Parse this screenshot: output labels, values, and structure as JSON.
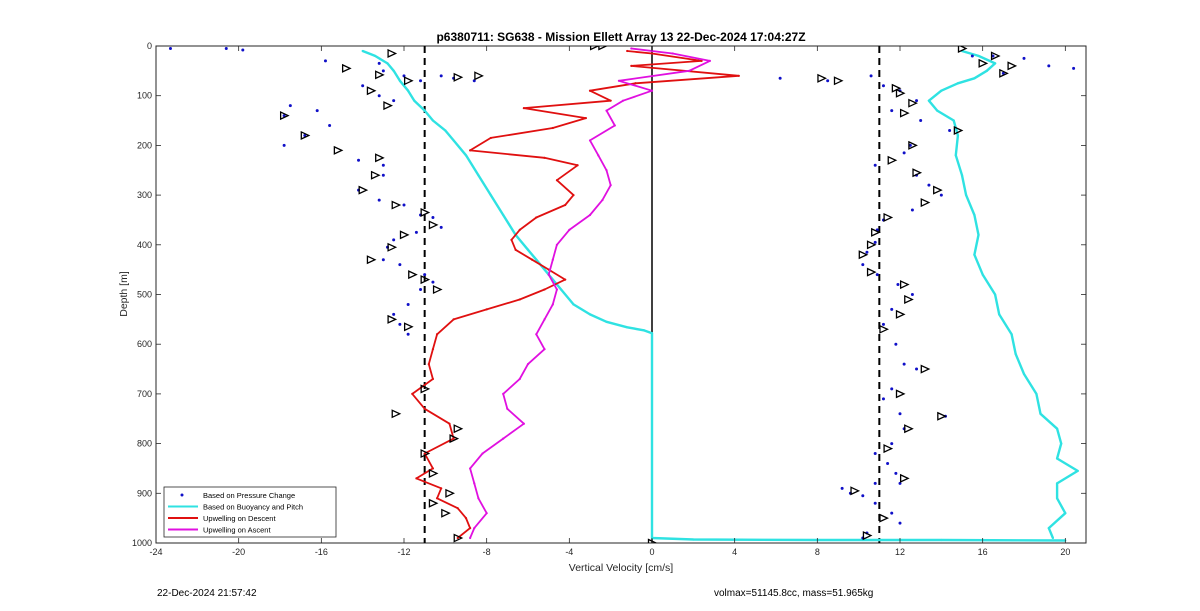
{
  "chart_data": {
    "type": "line",
    "title": "p6380711: SG638 - Mission Ellett Array 13 22-Dec-2024 17:04:27Z",
    "xlabel": "Vertical Velocity [cm/s]",
    "ylabel": "Depth [m]",
    "xlim": [
      -24,
      21
    ],
    "ylim": [
      0,
      1000
    ],
    "y_reversed": true,
    "xticks": [
      -24,
      -20,
      -16,
      -12,
      -8,
      -4,
      0,
      4,
      8,
      12,
      16,
      20
    ],
    "yticks": [
      0,
      100,
      200,
      300,
      400,
      500,
      600,
      700,
      800,
      900,
      1000
    ],
    "grid": false,
    "legend_position": "bottom-left",
    "reference_lines": {
      "dashed_x": [
        -11,
        11
      ],
      "solid_x": 0
    },
    "series": [
      {
        "name": "Based on Pressure Change",
        "style": "dots",
        "color": "#1010c8",
        "points": [
          [
            -23.3,
            5
          ],
          [
            -20.6,
            5
          ],
          [
            -19.8,
            8
          ],
          [
            -15.8,
            30
          ],
          [
            -13.2,
            35
          ],
          [
            -13.0,
            50
          ],
          [
            -12.0,
            60
          ],
          [
            -11.2,
            70
          ],
          [
            -10.2,
            60
          ],
          [
            -9.6,
            65
          ],
          [
            -8.6,
            70
          ],
          [
            -14.0,
            80
          ],
          [
            -13.2,
            100
          ],
          [
            -12.5,
            110
          ],
          [
            -17.5,
            120
          ],
          [
            -17.8,
            140
          ],
          [
            -16.2,
            130
          ],
          [
            -15.6,
            160
          ],
          [
            -16.8,
            180
          ],
          [
            -17.8,
            200
          ],
          [
            -14.2,
            230
          ],
          [
            -13.0,
            240
          ],
          [
            -13.0,
            260
          ],
          [
            -14.2,
            290
          ],
          [
            -13.2,
            310
          ],
          [
            -12.0,
            320
          ],
          [
            -11.2,
            340
          ],
          [
            -10.6,
            345
          ],
          [
            -10.2,
            365
          ],
          [
            -11.4,
            375
          ],
          [
            -12.5,
            390
          ],
          [
            -12.8,
            405
          ],
          [
            -13.0,
            430
          ],
          [
            -12.2,
            440
          ],
          [
            -11.0,
            460
          ],
          [
            -10.6,
            475
          ],
          [
            -11.2,
            490
          ],
          [
            -11.8,
            520
          ],
          [
            -12.5,
            540
          ],
          [
            -12.2,
            560
          ],
          [
            -11.8,
            580
          ],
          [
            8.5,
            70
          ],
          [
            6.2,
            65
          ],
          [
            10.6,
            60
          ],
          [
            11.2,
            80
          ],
          [
            12.0,
            90
          ],
          [
            12.8,
            110
          ],
          [
            11.6,
            130
          ],
          [
            13.0,
            150
          ],
          [
            14.4,
            170
          ],
          [
            12.5,
            200
          ],
          [
            12.2,
            215
          ],
          [
            10.8,
            240
          ],
          [
            12.8,
            260
          ],
          [
            13.4,
            280
          ],
          [
            14.0,
            300
          ],
          [
            12.6,
            330
          ],
          [
            11.2,
            350
          ],
          [
            10.9,
            370
          ],
          [
            10.8,
            395
          ],
          [
            10.4,
            415
          ],
          [
            10.2,
            440
          ],
          [
            10.9,
            460
          ],
          [
            11.9,
            480
          ],
          [
            12.6,
            500
          ],
          [
            11.6,
            530
          ],
          [
            11.2,
            560
          ],
          [
            11.8,
            600
          ],
          [
            12.2,
            640
          ],
          [
            12.8,
            650
          ],
          [
            11.6,
            690
          ],
          [
            11.2,
            710
          ],
          [
            12.0,
            740
          ],
          [
            14.2,
            745
          ],
          [
            12.2,
            770
          ],
          [
            11.6,
            800
          ],
          [
            10.8,
            820
          ],
          [
            11.4,
            840
          ],
          [
            11.8,
            860
          ],
          [
            12.0,
            880
          ],
          [
            10.8,
            880
          ],
          [
            9.2,
            890
          ],
          [
            9.6,
            900
          ],
          [
            10.2,
            905
          ],
          [
            10.8,
            920
          ],
          [
            11.6,
            940
          ],
          [
            12.0,
            960
          ],
          [
            10.4,
            980
          ],
          [
            10.2,
            990
          ],
          [
            15.5,
            20
          ],
          [
            16.5,
            20
          ],
          [
            18.0,
            25
          ],
          [
            19.2,
            40
          ],
          [
            20.4,
            45
          ],
          [
            17.0,
            55
          ]
        ]
      },
      {
        "name": "Based on Buoyancy and Pitch",
        "style": "line",
        "color": "#2fe2e2",
        "points": [
          [
            -14.0,
            10
          ],
          [
            -13.4,
            20
          ],
          [
            -12.8,
            35
          ],
          [
            -12.5,
            50
          ],
          [
            -12.2,
            70
          ],
          [
            -11.8,
            90
          ],
          [
            -11.5,
            110
          ],
          [
            -11.0,
            130
          ],
          [
            -10.6,
            150
          ],
          [
            -10.0,
            170
          ],
          [
            -9.6,
            190
          ],
          [
            -9.0,
            220
          ],
          [
            -8.4,
            260
          ],
          [
            -7.8,
            300
          ],
          [
            -7.2,
            340
          ],
          [
            -6.6,
            380
          ],
          [
            -6.0,
            410
          ],
          [
            -5.6,
            430
          ],
          [
            -5.0,
            460
          ],
          [
            -4.4,
            490
          ],
          [
            -3.8,
            520
          ],
          [
            -3.0,
            540
          ],
          [
            -2.2,
            555
          ],
          [
            -1.2,
            566
          ],
          [
            -0.4,
            572
          ],
          [
            0,
            578
          ],
          [
            0,
            990
          ],
          [
            2,
            993
          ],
          [
            8,
            994
          ],
          [
            14,
            994
          ],
          [
            20,
            995
          ],
          [
            15,
            10
          ],
          [
            15.8,
            20
          ],
          [
            16.6,
            35
          ],
          [
            16.2,
            50
          ],
          [
            15.6,
            65
          ],
          [
            14.8,
            75
          ],
          [
            14.0,
            90
          ],
          [
            13.4,
            110
          ],
          [
            13.8,
            130
          ],
          [
            14.6,
            150
          ],
          [
            14.8,
            180
          ],
          [
            14.7,
            220
          ],
          [
            15.0,
            260
          ],
          [
            15.2,
            300
          ],
          [
            15.6,
            340
          ],
          [
            15.8,
            380
          ],
          [
            15.6,
            420
          ],
          [
            16.0,
            460
          ],
          [
            16.6,
            500
          ],
          [
            16.8,
            540
          ],
          [
            17.4,
            580
          ],
          [
            17.6,
            620
          ],
          [
            18.0,
            660
          ],
          [
            18.6,
            700
          ],
          [
            18.8,
            740
          ],
          [
            19.6,
            770
          ],
          [
            19.8,
            800
          ],
          [
            19.6,
            830
          ],
          [
            20.6,
            855
          ],
          [
            19.6,
            880
          ],
          [
            19.6,
            910
          ],
          [
            20.0,
            940
          ],
          [
            19.2,
            970
          ],
          [
            19.4,
            990
          ]
        ]
      },
      {
        "name": "Upwelling on Descent",
        "style": "line",
        "color": "#e01010",
        "points": [
          [
            -1.2,
            10
          ],
          [
            0.0,
            15
          ],
          [
            2.4,
            30
          ],
          [
            -1.0,
            40
          ],
          [
            4.2,
            60
          ],
          [
            -0.8,
            75
          ],
          [
            -3.0,
            90
          ],
          [
            -2.0,
            110
          ],
          [
            -6.2,
            125
          ],
          [
            -3.2,
            145
          ],
          [
            -4.8,
            165
          ],
          [
            -7.8,
            185
          ],
          [
            -8.8,
            210
          ],
          [
            -5.2,
            225
          ],
          [
            -3.6,
            240
          ],
          [
            -4.6,
            270
          ],
          [
            -3.8,
            300
          ],
          [
            -4.2,
            320
          ],
          [
            -5.6,
            345
          ],
          [
            -6.4,
            370
          ],
          [
            -6.8,
            390
          ],
          [
            -6.6,
            410
          ],
          [
            -5.8,
            430
          ],
          [
            -5.0,
            450
          ],
          [
            -4.2,
            470
          ],
          [
            -5.2,
            490
          ],
          [
            -6.4,
            510
          ],
          [
            -8.0,
            530
          ],
          [
            -9.6,
            550
          ],
          [
            -10.4,
            580
          ],
          [
            -10.6,
            610
          ],
          [
            -10.8,
            640
          ],
          [
            -10.6,
            670
          ],
          [
            -11.6,
            700
          ],
          [
            -11.0,
            730
          ],
          [
            -9.8,
            760
          ],
          [
            -9.6,
            790
          ],
          [
            -11.0,
            820
          ],
          [
            -10.6,
            850
          ],
          [
            -11.4,
            870
          ],
          [
            -10.2,
            890
          ],
          [
            -10.4,
            910
          ],
          [
            -9.4,
            930
          ],
          [
            -9.0,
            950
          ],
          [
            -8.8,
            970
          ],
          [
            -9.4,
            990
          ]
        ]
      },
      {
        "name": "Upwelling on Ascent",
        "style": "line",
        "color": "#e010e0",
        "points": [
          [
            -1.0,
            5
          ],
          [
            1.0,
            15
          ],
          [
            2.8,
            30
          ],
          [
            1.8,
            50
          ],
          [
            -1.6,
            70
          ],
          [
            0.0,
            90
          ],
          [
            -1.4,
            110
          ],
          [
            -2.2,
            130
          ],
          [
            -1.8,
            160
          ],
          [
            -3.0,
            190
          ],
          [
            -2.6,
            220
          ],
          [
            -2.2,
            250
          ],
          [
            -2.0,
            280
          ],
          [
            -2.4,
            310
          ],
          [
            -3.0,
            340
          ],
          [
            -4.0,
            370
          ],
          [
            -4.6,
            400
          ],
          [
            -4.8,
            430
          ],
          [
            -5.0,
            460
          ],
          [
            -4.6,
            490
          ],
          [
            -4.8,
            520
          ],
          [
            -5.2,
            550
          ],
          [
            -5.6,
            580
          ],
          [
            -5.2,
            610
          ],
          [
            -6.0,
            640
          ],
          [
            -6.4,
            670
          ],
          [
            -7.2,
            700
          ],
          [
            -7.0,
            730
          ],
          [
            -6.2,
            760
          ],
          [
            -7.2,
            790
          ],
          [
            -8.2,
            820
          ],
          [
            -8.8,
            850
          ],
          [
            -8.6,
            880
          ],
          [
            -8.4,
            910
          ],
          [
            -8.0,
            940
          ],
          [
            -8.6,
            970
          ],
          [
            -8.8,
            990
          ]
        ]
      }
    ],
    "triangle_markers": [
      [
        -2.8,
        0
      ],
      [
        -12.6,
        15
      ],
      [
        -14.8,
        45
      ],
      [
        -13.2,
        58
      ],
      [
        -8.4,
        60
      ],
      [
        -9.4,
        63
      ],
      [
        -11.8,
        70
      ],
      [
        -13.6,
        90
      ],
      [
        -12.8,
        120
      ],
      [
        -17.8,
        140
      ],
      [
        -16.8,
        180
      ],
      [
        -15.2,
        210
      ],
      [
        -13.2,
        225
      ],
      [
        -13.4,
        260
      ],
      [
        -14.0,
        290
      ],
      [
        -12.4,
        320
      ],
      [
        -11.0,
        335
      ],
      [
        -10.6,
        360
      ],
      [
        -12.0,
        380
      ],
      [
        -12.6,
        405
      ],
      [
        -13.6,
        430
      ],
      [
        -11.6,
        460
      ],
      [
        -11.0,
        470
      ],
      [
        -10.4,
        490
      ],
      [
        -12.6,
        550
      ],
      [
        -11.8,
        565
      ],
      [
        -11.0,
        690
      ],
      [
        -12.4,
        740
      ],
      [
        -9.4,
        770
      ],
      [
        -9.6,
        790
      ],
      [
        -11.0,
        820
      ],
      [
        -10.6,
        860
      ],
      [
        -9.8,
        900
      ],
      [
        -10.6,
        920
      ],
      [
        -10.0,
        940
      ],
      [
        -9.4,
        990
      ],
      [
        8.2,
        65
      ],
      [
        9.0,
        70
      ],
      [
        15.0,
        5
      ],
      [
        16.6,
        20
      ],
      [
        16.0,
        35
      ],
      [
        17.4,
        40
      ],
      [
        17.0,
        55
      ],
      [
        11.8,
        85
      ],
      [
        12.0,
        95
      ],
      [
        12.6,
        115
      ],
      [
        12.2,
        135
      ],
      [
        14.8,
        170
      ],
      [
        12.6,
        200
      ],
      [
        11.6,
        230
      ],
      [
        12.8,
        255
      ],
      [
        13.8,
        290
      ],
      [
        13.2,
        315
      ],
      [
        11.4,
        345
      ],
      [
        10.8,
        375
      ],
      [
        10.6,
        400
      ],
      [
        10.2,
        420
      ],
      [
        10.6,
        455
      ],
      [
        12.2,
        480
      ],
      [
        12.4,
        510
      ],
      [
        12.0,
        540
      ],
      [
        11.2,
        570
      ],
      [
        13.2,
        650
      ],
      [
        12.0,
        700
      ],
      [
        14.0,
        745
      ],
      [
        12.4,
        770
      ],
      [
        11.4,
        810
      ],
      [
        12.2,
        870
      ],
      [
        9.8,
        895
      ],
      [
        11.2,
        950
      ],
      [
        10.4,
        985
      ],
      [
        0,
        1000
      ],
      [
        -2.4,
        0
      ]
    ],
    "legend": [
      {
        "label": "Based on Pressure Change",
        "color": "#1010c8",
        "style": "dots"
      },
      {
        "label": "Based on Buoyancy and Pitch",
        "color": "#2fe2e2",
        "style": "line"
      },
      {
        "label": "Upwelling on Descent",
        "color": "#e01010",
        "style": "line"
      },
      {
        "label": "Upwelling on Ascent",
        "color": "#e010e0",
        "style": "line"
      }
    ]
  },
  "footer": {
    "timestamp": "22-Dec-2024 21:57:42",
    "params": "volmax=51145.8cc, mass=51.965kg"
  }
}
